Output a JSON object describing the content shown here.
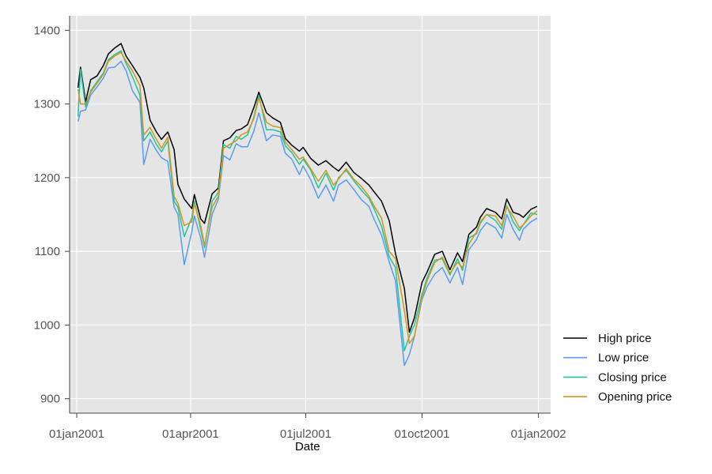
{
  "chart_data": {
    "type": "line",
    "title": "",
    "xlabel": "Date",
    "ylabel": "",
    "xlim": [
      "2001-01-01",
      "2002-01-05"
    ],
    "ylim": [
      890,
      1410
    ],
    "x_ticks": [
      {
        "date": "2001-01-01",
        "label": "01jan2001"
      },
      {
        "date": "2001-04-01",
        "label": "01apr2001"
      },
      {
        "date": "2001-07-01",
        "label": "01jul2001"
      },
      {
        "date": "2001-10-01",
        "label": "01oct2001"
      },
      {
        "date": "2002-01-01",
        "label": "01jan2002"
      }
    ],
    "y_ticks": [
      900,
      1000,
      1100,
      1200,
      1300,
      1400
    ],
    "grid": true,
    "legend_position": "right-bottom",
    "dates": [
      "2001-01-02",
      "2001-01-04",
      "2001-01-08",
      "2001-01-12",
      "2001-01-17",
      "2001-01-22",
      "2001-01-26",
      "2001-01-31",
      "2001-02-05",
      "2001-02-09",
      "2001-02-14",
      "2001-02-20",
      "2001-02-23",
      "2001-02-28",
      "2001-03-05",
      "2001-03-09",
      "2001-03-14",
      "2001-03-19",
      "2001-03-22",
      "2001-03-27",
      "2001-04-02",
      "2001-04-04",
      "2001-04-09",
      "2001-04-12",
      "2001-04-18",
      "2001-04-23",
      "2001-04-27",
      "2001-05-02",
      "2001-05-07",
      "2001-05-11",
      "2001-05-16",
      "2001-05-21",
      "2001-05-25",
      "2001-05-31",
      "2001-06-05",
      "2001-06-11",
      "2001-06-15",
      "2001-06-20",
      "2001-06-26",
      "2001-06-29",
      "2001-07-05",
      "2001-07-11",
      "2001-07-17",
      "2001-07-23",
      "2001-07-27",
      "2001-08-02",
      "2001-08-08",
      "2001-08-14",
      "2001-08-20",
      "2001-08-24",
      "2001-08-30",
      "2001-09-05",
      "2001-09-10",
      "2001-09-17",
      "2001-09-21",
      "2001-09-25",
      "2001-10-01",
      "2001-10-05",
      "2001-10-11",
      "2001-10-17",
      "2001-10-23",
      "2001-10-29",
      "2001-11-02",
      "2001-11-07",
      "2001-11-13",
      "2001-11-16",
      "2001-11-21",
      "2001-11-28",
      "2001-12-03",
      "2001-12-07",
      "2001-12-12",
      "2001-12-17",
      "2001-12-20",
      "2001-12-26",
      "2001-12-31"
    ],
    "series": [
      {
        "name": "High price",
        "color": "#000000",
        "values": [
          1322,
          1350,
          1303,
          1333,
          1338,
          1352,
          1368,
          1376,
          1382,
          1365,
          1352,
          1336,
          1322,
          1278,
          1262,
          1252,
          1262,
          1238,
          1191,
          1171,
          1158,
          1177,
          1144,
          1138,
          1178,
          1186,
          1250,
          1254,
          1264,
          1266,
          1272,
          1295,
          1316,
          1288,
          1281,
          1275,
          1253,
          1244,
          1236,
          1241,
          1226,
          1217,
          1223,
          1214,
          1209,
          1221,
          1207,
          1199,
          1190,
          1181,
          1168,
          1142,
          1097,
          1050,
          990,
          1010,
          1058,
          1072,
          1096,
          1100,
          1075,
          1098,
          1086,
          1123,
          1133,
          1146,
          1158,
          1153,
          1144,
          1171,
          1153,
          1150,
          1146,
          1157,
          1161
        ]
      },
      {
        "name": "Low price",
        "color": "#5a9bf0",
        "values": [
          1276,
          1290,
          1292,
          1312,
          1323,
          1335,
          1349,
          1350,
          1358,
          1345,
          1318,
          1302,
          1218,
          1252,
          1237,
          1227,
          1222,
          1160,
          1150,
          1082,
          1127,
          1148,
          1118,
          1092,
          1150,
          1171,
          1230,
          1224,
          1246,
          1242,
          1242,
          1263,
          1288,
          1250,
          1258,
          1256,
          1233,
          1225,
          1204,
          1216,
          1197,
          1172,
          1190,
          1168,
          1190,
          1197,
          1184,
          1170,
          1161,
          1144,
          1122,
          1086,
          1060,
          945,
          960,
          985,
          1035,
          1052,
          1069,
          1078,
          1057,
          1078,
          1055,
          1102,
          1116,
          1128,
          1139,
          1132,
          1118,
          1150,
          1130,
          1115,
          1130,
          1140,
          1145
        ]
      },
      {
        "name": "Closing price",
        "color": "#1fc4a2",
        "values": [
          1283,
          1347,
          1296,
          1318,
          1330,
          1342,
          1360,
          1367,
          1372,
          1355,
          1337,
          1312,
          1250,
          1262,
          1245,
          1235,
          1250,
          1168,
          1160,
          1120,
          1146,
          1168,
          1130,
          1105,
          1168,
          1180,
          1245,
          1240,
          1256,
          1252,
          1258,
          1282,
          1312,
          1265,
          1265,
          1262,
          1243,
          1234,
          1218,
          1225,
          1210,
          1186,
          1206,
          1183,
          1200,
          1210,
          1196,
          1183,
          1172,
          1158,
          1134,
          1093,
          1078,
          965,
          985,
          1000,
          1042,
          1064,
          1088,
          1090,
          1068,
          1090,
          1074,
          1118,
          1124,
          1138,
          1150,
          1142,
          1130,
          1162,
          1140,
          1128,
          1136,
          1152,
          1150
        ]
      },
      {
        "name": "Opening price",
        "color": "#c99a1c",
        "values": [
          1320,
          1300,
          1300,
          1316,
          1328,
          1340,
          1358,
          1365,
          1370,
          1358,
          1345,
          1325,
          1258,
          1268,
          1252,
          1240,
          1255,
          1175,
          1165,
          1135,
          1140,
          1165,
          1135,
          1108,
          1160,
          1175,
          1240,
          1245,
          1250,
          1258,
          1262,
          1280,
          1308,
          1275,
          1270,
          1268,
          1248,
          1238,
          1225,
          1228,
          1212,
          1195,
          1210,
          1190,
          1198,
          1212,
          1198,
          1188,
          1175,
          1162,
          1145,
          1100,
          1090,
          1020,
          975,
          985,
          1038,
          1060,
          1085,
          1092,
          1070,
          1085,
          1078,
          1110,
          1126,
          1140,
          1150,
          1148,
          1135,
          1160,
          1148,
          1132,
          1136,
          1148,
          1155
        ]
      }
    ]
  }
}
